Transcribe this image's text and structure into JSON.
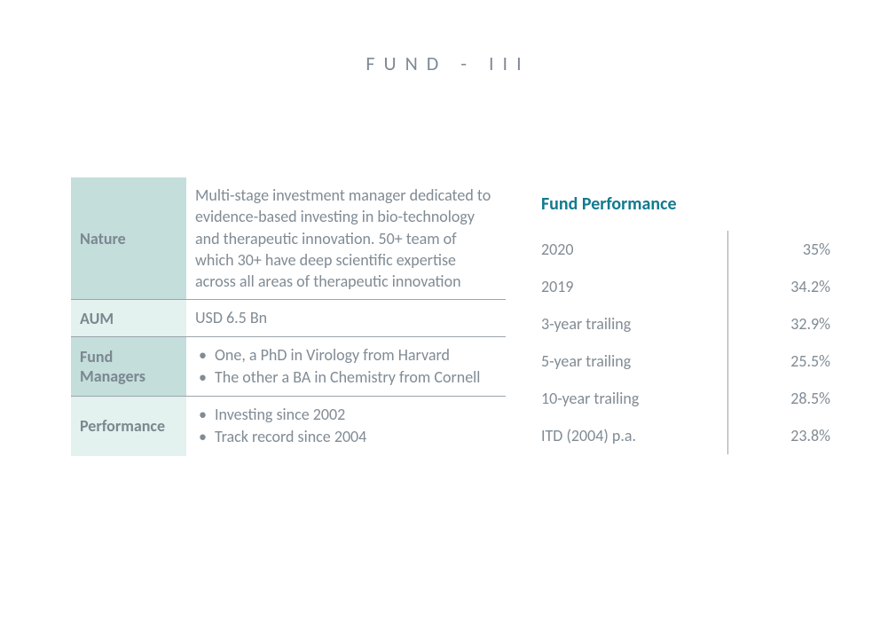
{
  "title": "FUND - III",
  "colors": {
    "text_muted": "#808b94",
    "title_muted": "#7f8a95",
    "accent_teal": "#127a8f",
    "row_header_dark": "#c3dedb",
    "row_header_light": "#e3f1ef",
    "border": "#9aa5ad",
    "background": "#ffffff"
  },
  "fonts": {
    "family": "Calibri",
    "title_fontsize": 22,
    "title_letter_spacing": 10,
    "body_fontsize": 18,
    "perf_title_fontsize": 20
  },
  "info_table": {
    "column_widths": {
      "label": 130
    },
    "rows": [
      {
        "shade": "a",
        "label": "Nature",
        "value_type": "text",
        "value": "Multi-stage investment manager dedicated to evidence-based investing in bio-technology and therapeutic innovation.  50+ team of which 30+ have deep scientific expertise across all areas of therapeutic innovation"
      },
      {
        "shade": "b",
        "label": "AUM",
        "value_type": "text",
        "value": "USD 6.5  Bn"
      },
      {
        "shade": "a",
        "label": "Fund Managers",
        "value_type": "list",
        "items": [
          "One, a PhD in Virology from Harvard",
          "The other a BA in Chemistry from Cornell"
        ]
      },
      {
        "shade": "b",
        "label": "Performance",
        "value_type": "list",
        "items": [
          "Investing since 2002",
          "Track record since 2004"
        ]
      }
    ]
  },
  "performance": {
    "title": "Fund Performance",
    "label_column_width": 210,
    "rows": [
      {
        "label": "2020",
        "value": "35%"
      },
      {
        "label": "2019",
        "value": "34.2%"
      },
      {
        "label": "3-year trailing",
        "value": "32.9%"
      },
      {
        "label": "5-year trailing",
        "value": "25.5%"
      },
      {
        "label": "10-year trailing",
        "value": "28.5%"
      },
      {
        "label": "ITD (2004) p.a.",
        "value": "23.8%"
      }
    ]
  }
}
